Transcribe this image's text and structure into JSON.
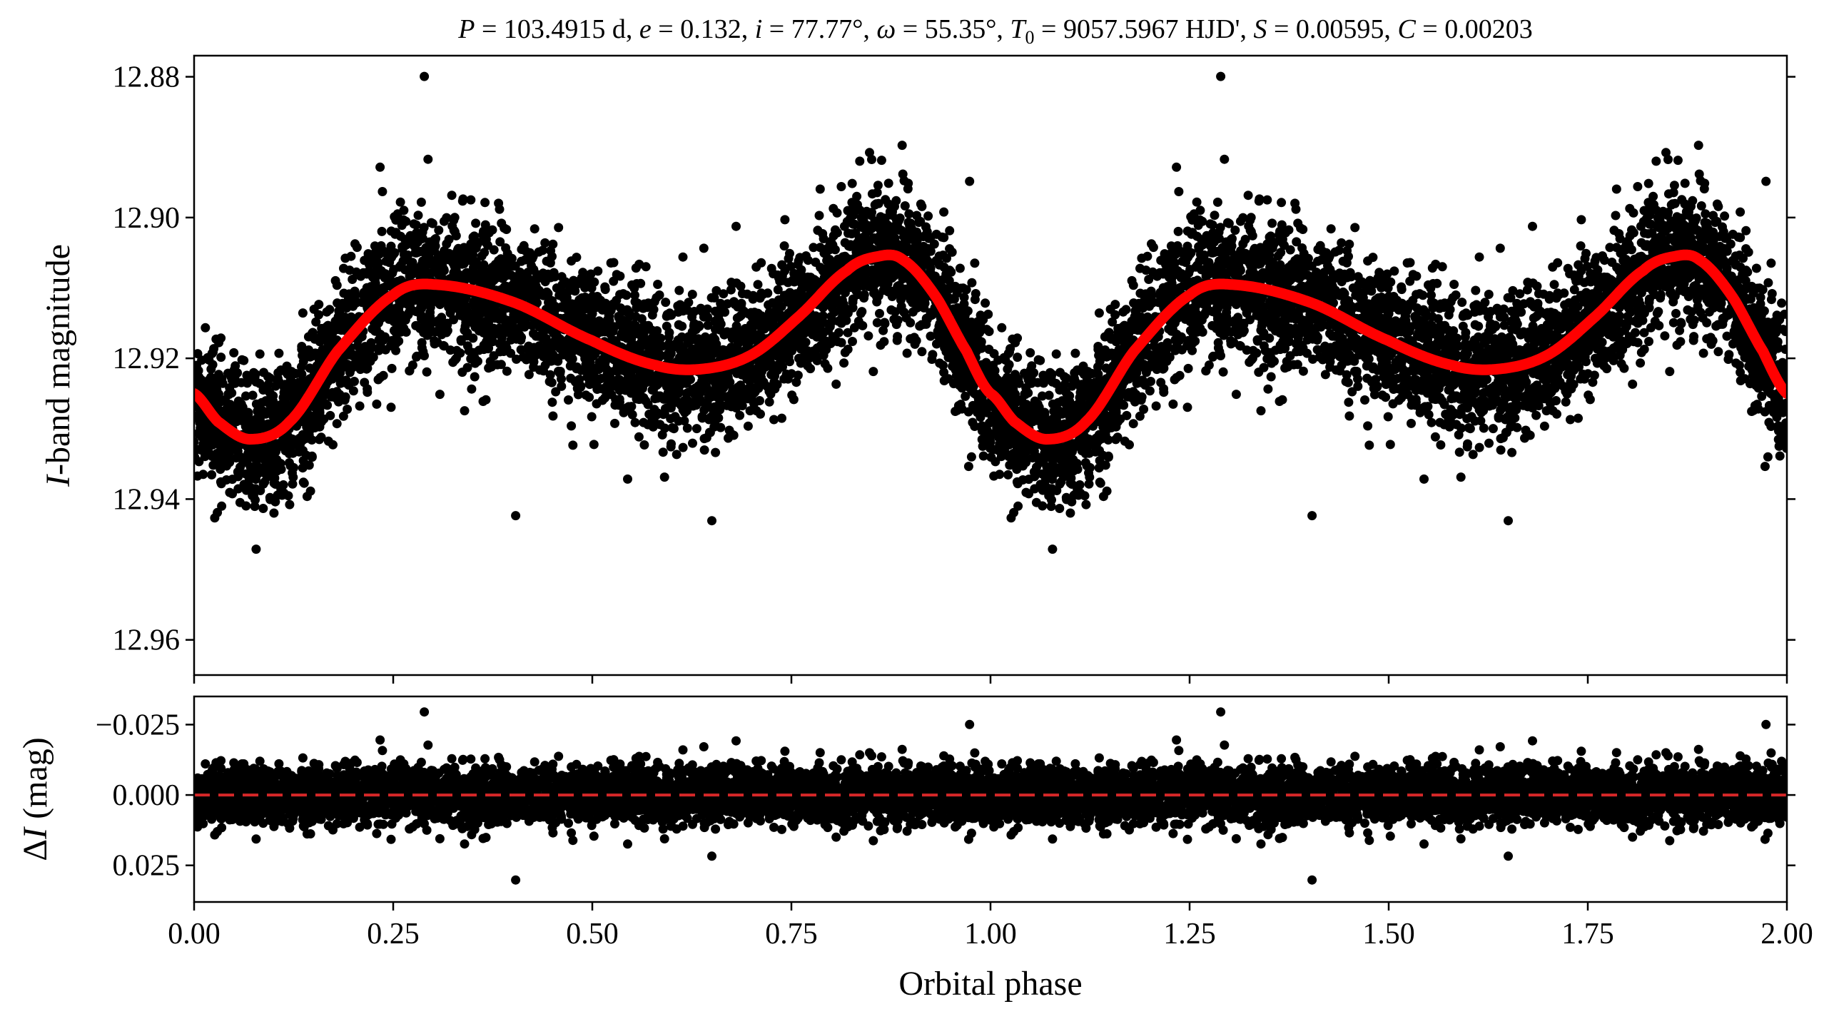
{
  "chart_data": [
    {
      "panel": "top",
      "type": "scatter",
      "title": "P = 103.4915 d, e = 0.132, i = 77.77°, ω = 55.35°, T0 = 9057.5967 HJD', S = 0.00595, C = 0.00203",
      "title_parts": {
        "P_label": "P",
        "P_value": " = 103.4915 d, ",
        "e_label": "e",
        "e_value": " = 0.132, ",
        "i_label": "i",
        "i_value": " = 77.77°, ",
        "omega_label": "ω",
        "omega_value": " = 55.35°, ",
        "T0_label": "T",
        "T0_sub": "0",
        "T0_value": " = 9057.5967 HJD', ",
        "S_label": "S",
        "S_value": " = 0.00595, ",
        "C_label": "C",
        "C_value": " = 0.00203"
      },
      "ylabel_italic": "I",
      "ylabel_rest": "-band magnitude",
      "xlim": [
        0.0,
        2.0
      ],
      "ylim": [
        12.965,
        12.877
      ],
      "y_inverted": true,
      "yticks": [
        12.88,
        12.9,
        12.92,
        12.94,
        12.96
      ],
      "ytick_labels": [
        "12.88",
        "12.90",
        "12.92",
        "12.94",
        "12.96"
      ],
      "series": [
        {
          "kind": "observations",
          "color": "#000000",
          "description_points": "dense photometric data folded on orbital phase, repeated over two cycles",
          "scatter_sigma_mag": 0.005,
          "n_points_per_cycle": 4200
        },
        {
          "kind": "model",
          "color": "#ff0000",
          "phase": [
            0.0,
            0.03,
            0.07,
            0.12,
            0.18,
            0.25,
            0.3,
            0.4,
            0.5,
            0.58,
            0.64,
            0.7,
            0.76,
            0.82,
            0.86,
            0.89,
            0.93,
            0.97,
            1.0
          ],
          "magnitude": [
            12.925,
            12.929,
            12.9315,
            12.929,
            12.919,
            12.911,
            12.9095,
            12.912,
            12.9175,
            12.921,
            12.9215,
            12.9195,
            12.914,
            12.9075,
            12.9055,
            12.906,
            12.911,
            12.919,
            12.925
          ]
        }
      ]
    },
    {
      "panel": "bottom",
      "type": "scatter",
      "xlabel": "Orbital phase",
      "ylabel_prefix": "Δ",
      "ylabel_italic": "I",
      "ylabel_rest": " (mag)",
      "xlim": [
        0.0,
        2.0
      ],
      "ylim": [
        0.038,
        -0.035
      ],
      "y_inverted": true,
      "xticks": [
        0.0,
        0.25,
        0.5,
        0.75,
        1.0,
        1.25,
        1.5,
        1.75,
        2.0
      ],
      "xtick_labels": [
        "0.00",
        "0.25",
        "0.50",
        "0.75",
        "1.00",
        "1.25",
        "1.50",
        "1.75",
        "2.00"
      ],
      "yticks": [
        -0.025,
        0.0,
        0.025
      ],
      "ytick_labels": [
        "−0.025",
        "0.000",
        "0.025"
      ],
      "series": [
        {
          "kind": "residuals",
          "color": "#000000",
          "scatter_sigma_mag": 0.005
        },
        {
          "kind": "zero-line",
          "color": "#d62728",
          "style": "dashed",
          "y": 0.0
        }
      ]
    }
  ]
}
